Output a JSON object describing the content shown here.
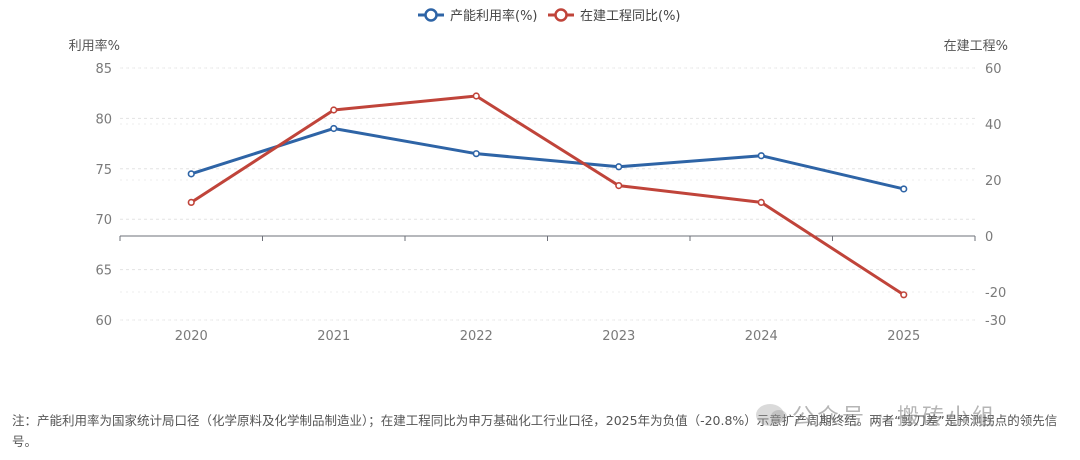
{
  "chart_data": {
    "type": "line",
    "categories": [
      "2020",
      "2021",
      "2022",
      "2023",
      "2024",
      "2025"
    ],
    "series": [
      {
        "name": "产能利用率(%)",
        "axis": "left",
        "color": "#2e64a6",
        "values": [
          74.5,
          79.0,
          76.5,
          75.2,
          76.3,
          73.0
        ]
      },
      {
        "name": "在建工程同比(%)",
        "axis": "right",
        "color": "#c0443a",
        "values": [
          12,
          45,
          50,
          18,
          12,
          -21
        ]
      }
    ],
    "left_axis": {
      "name": "利用率%",
      "ticks": [
        85,
        80,
        75,
        70,
        65,
        60
      ],
      "ylim": [
        60,
        85
      ]
    },
    "right_axis": {
      "name": "在建工程%",
      "ticks": [
        60,
        40,
        20,
        0,
        -20,
        -30
      ],
      "ylim": [
        -30,
        60
      ]
    },
    "x_axis_at_right_value": 0,
    "legend_position": "top-center",
    "grid": "horizontal dashed"
  },
  "footnote": "注：产能利用率为国家统计局口径（化学原料及化学制品制造业）；在建工程同比为申万基础化工行业口径，2025年为负值（-20.8%）示意扩产周期终结。两者“剪刀差”是预测拐点的领先信号。",
  "watermark": "公众号 · 搬砖小组"
}
